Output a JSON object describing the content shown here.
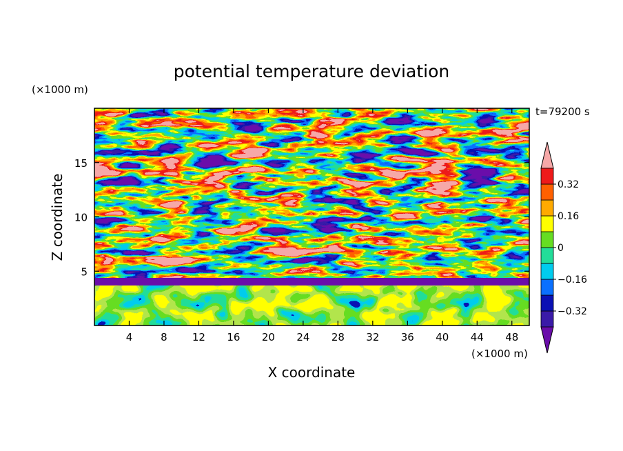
{
  "chart_data": {
    "type": "heatmap",
    "title": "potential temperature deviation",
    "xlabel": "X coordinate",
    "ylabel": "Z coordinate",
    "x_unit_label": "(×1000 m)",
    "y_unit_label": "(×1000 m)",
    "time_label": "t=79200 s",
    "xlim": [
      0,
      50
    ],
    "ylim": [
      0,
      20
    ],
    "x_ticks": [
      4,
      8,
      12,
      16,
      20,
      24,
      28,
      32,
      36,
      40,
      44,
      48
    ],
    "y_ticks": [
      5,
      10,
      15
    ],
    "colorbar": {
      "levels": [
        -0.4,
        -0.32,
        -0.24,
        -0.16,
        -0.08,
        0,
        0.08,
        0.16,
        0.24,
        0.32,
        0.4
      ],
      "labels": [
        {
          "value": 0.32,
          "text": "0.32"
        },
        {
          "value": 0.16,
          "text": "0.16"
        },
        {
          "value": 0,
          "text": "0"
        },
        {
          "value": -0.16,
          "text": "−0.16"
        },
        {
          "value": -0.32,
          "text": "−0.32"
        }
      ],
      "colors": [
        "#6a0daa",
        "#3a1aa8",
        "#0a10b4",
        "#0a70ff",
        "#00ccee",
        "#22dd99",
        "#66dd22",
        "#ffff00",
        "#ffaa00",
        "#ff6000",
        "#ee1a1a",
        "#f6a8a8"
      ],
      "extend": "both"
    },
    "grid": false,
    "legend": "colorbar-right"
  }
}
